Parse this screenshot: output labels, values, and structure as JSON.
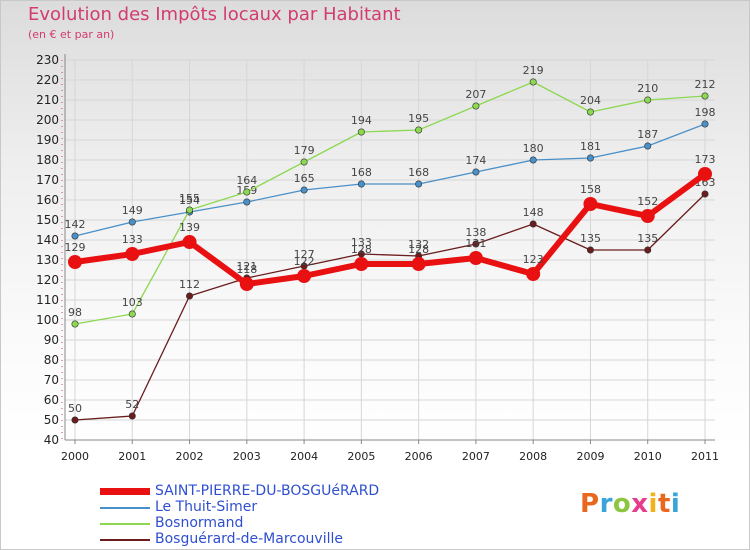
{
  "title": "Evolution des Impôts locaux par Habitant",
  "subtitle": "(en € et par an)",
  "brand": {
    "logo_chars": [
      "P",
      "r",
      "o",
      "x",
      "i",
      "t",
      "i"
    ]
  },
  "colors": {
    "title": "#d23c6e",
    "grid": "#d6d6d6",
    "axis": "#888888",
    "legend_text": "#2f4fd0"
  },
  "chart_data": {
    "type": "line",
    "title": "Evolution des Impôts locaux par Habitant",
    "subtitle": "(en € et par an)",
    "xlabel": "",
    "ylabel": "",
    "x": [
      "2000",
      "2001",
      "2002",
      "2003",
      "2004",
      "2005",
      "2006",
      "2007",
      "2008",
      "2009",
      "2010",
      "2011"
    ],
    "ylim": [
      40,
      230
    ],
    "ytick_step": 10,
    "grid": true,
    "legend_position": "bottom-left",
    "series": [
      {
        "name": "SAINT-PIERRE-DU-BOSGUéRARD",
        "color": "#e81010",
        "emphasis": true,
        "values": [
          129,
          133,
          139,
          118,
          122,
          128,
          128,
          131,
          123,
          158,
          152,
          173
        ],
        "labels": [
          "129",
          "133",
          "139",
          "118",
          "122",
          "128",
          "128",
          "131",
          "123",
          "158",
          "152",
          "173"
        ]
      },
      {
        "name": "Le Thuit-Simer",
        "color": "#4a90c8",
        "emphasis": false,
        "values": [
          142,
          149,
          154,
          159,
          165,
          168,
          168,
          174,
          180,
          181,
          187,
          198
        ],
        "labels": [
          "142",
          "149",
          "154",
          "159",
          "165",
          "168",
          "168",
          "174",
          "180",
          "181",
          "187",
          "198"
        ]
      },
      {
        "name": "Bosnormand",
        "color": "#8cd850",
        "emphasis": false,
        "values": [
          98,
          103,
          155,
          164,
          179,
          194,
          195,
          207,
          219,
          204,
          210,
          212
        ],
        "labels": [
          "98",
          "103",
          "155",
          "164",
          "179",
          "194",
          "195",
          "207",
          "219",
          "204",
          "210",
          "212"
        ]
      },
      {
        "name": "Bosguérard-de-Marcouville",
        "color": "#6b1c1c",
        "emphasis": false,
        "values": [
          50,
          52,
          112,
          121,
          127,
          133,
          132,
          138,
          148,
          135,
          135,
          163
        ],
        "labels": [
          "50",
          "52",
          "112",
          "121",
          "127",
          "133",
          "132",
          "138",
          "148",
          "135",
          "135",
          "163"
        ]
      }
    ]
  }
}
